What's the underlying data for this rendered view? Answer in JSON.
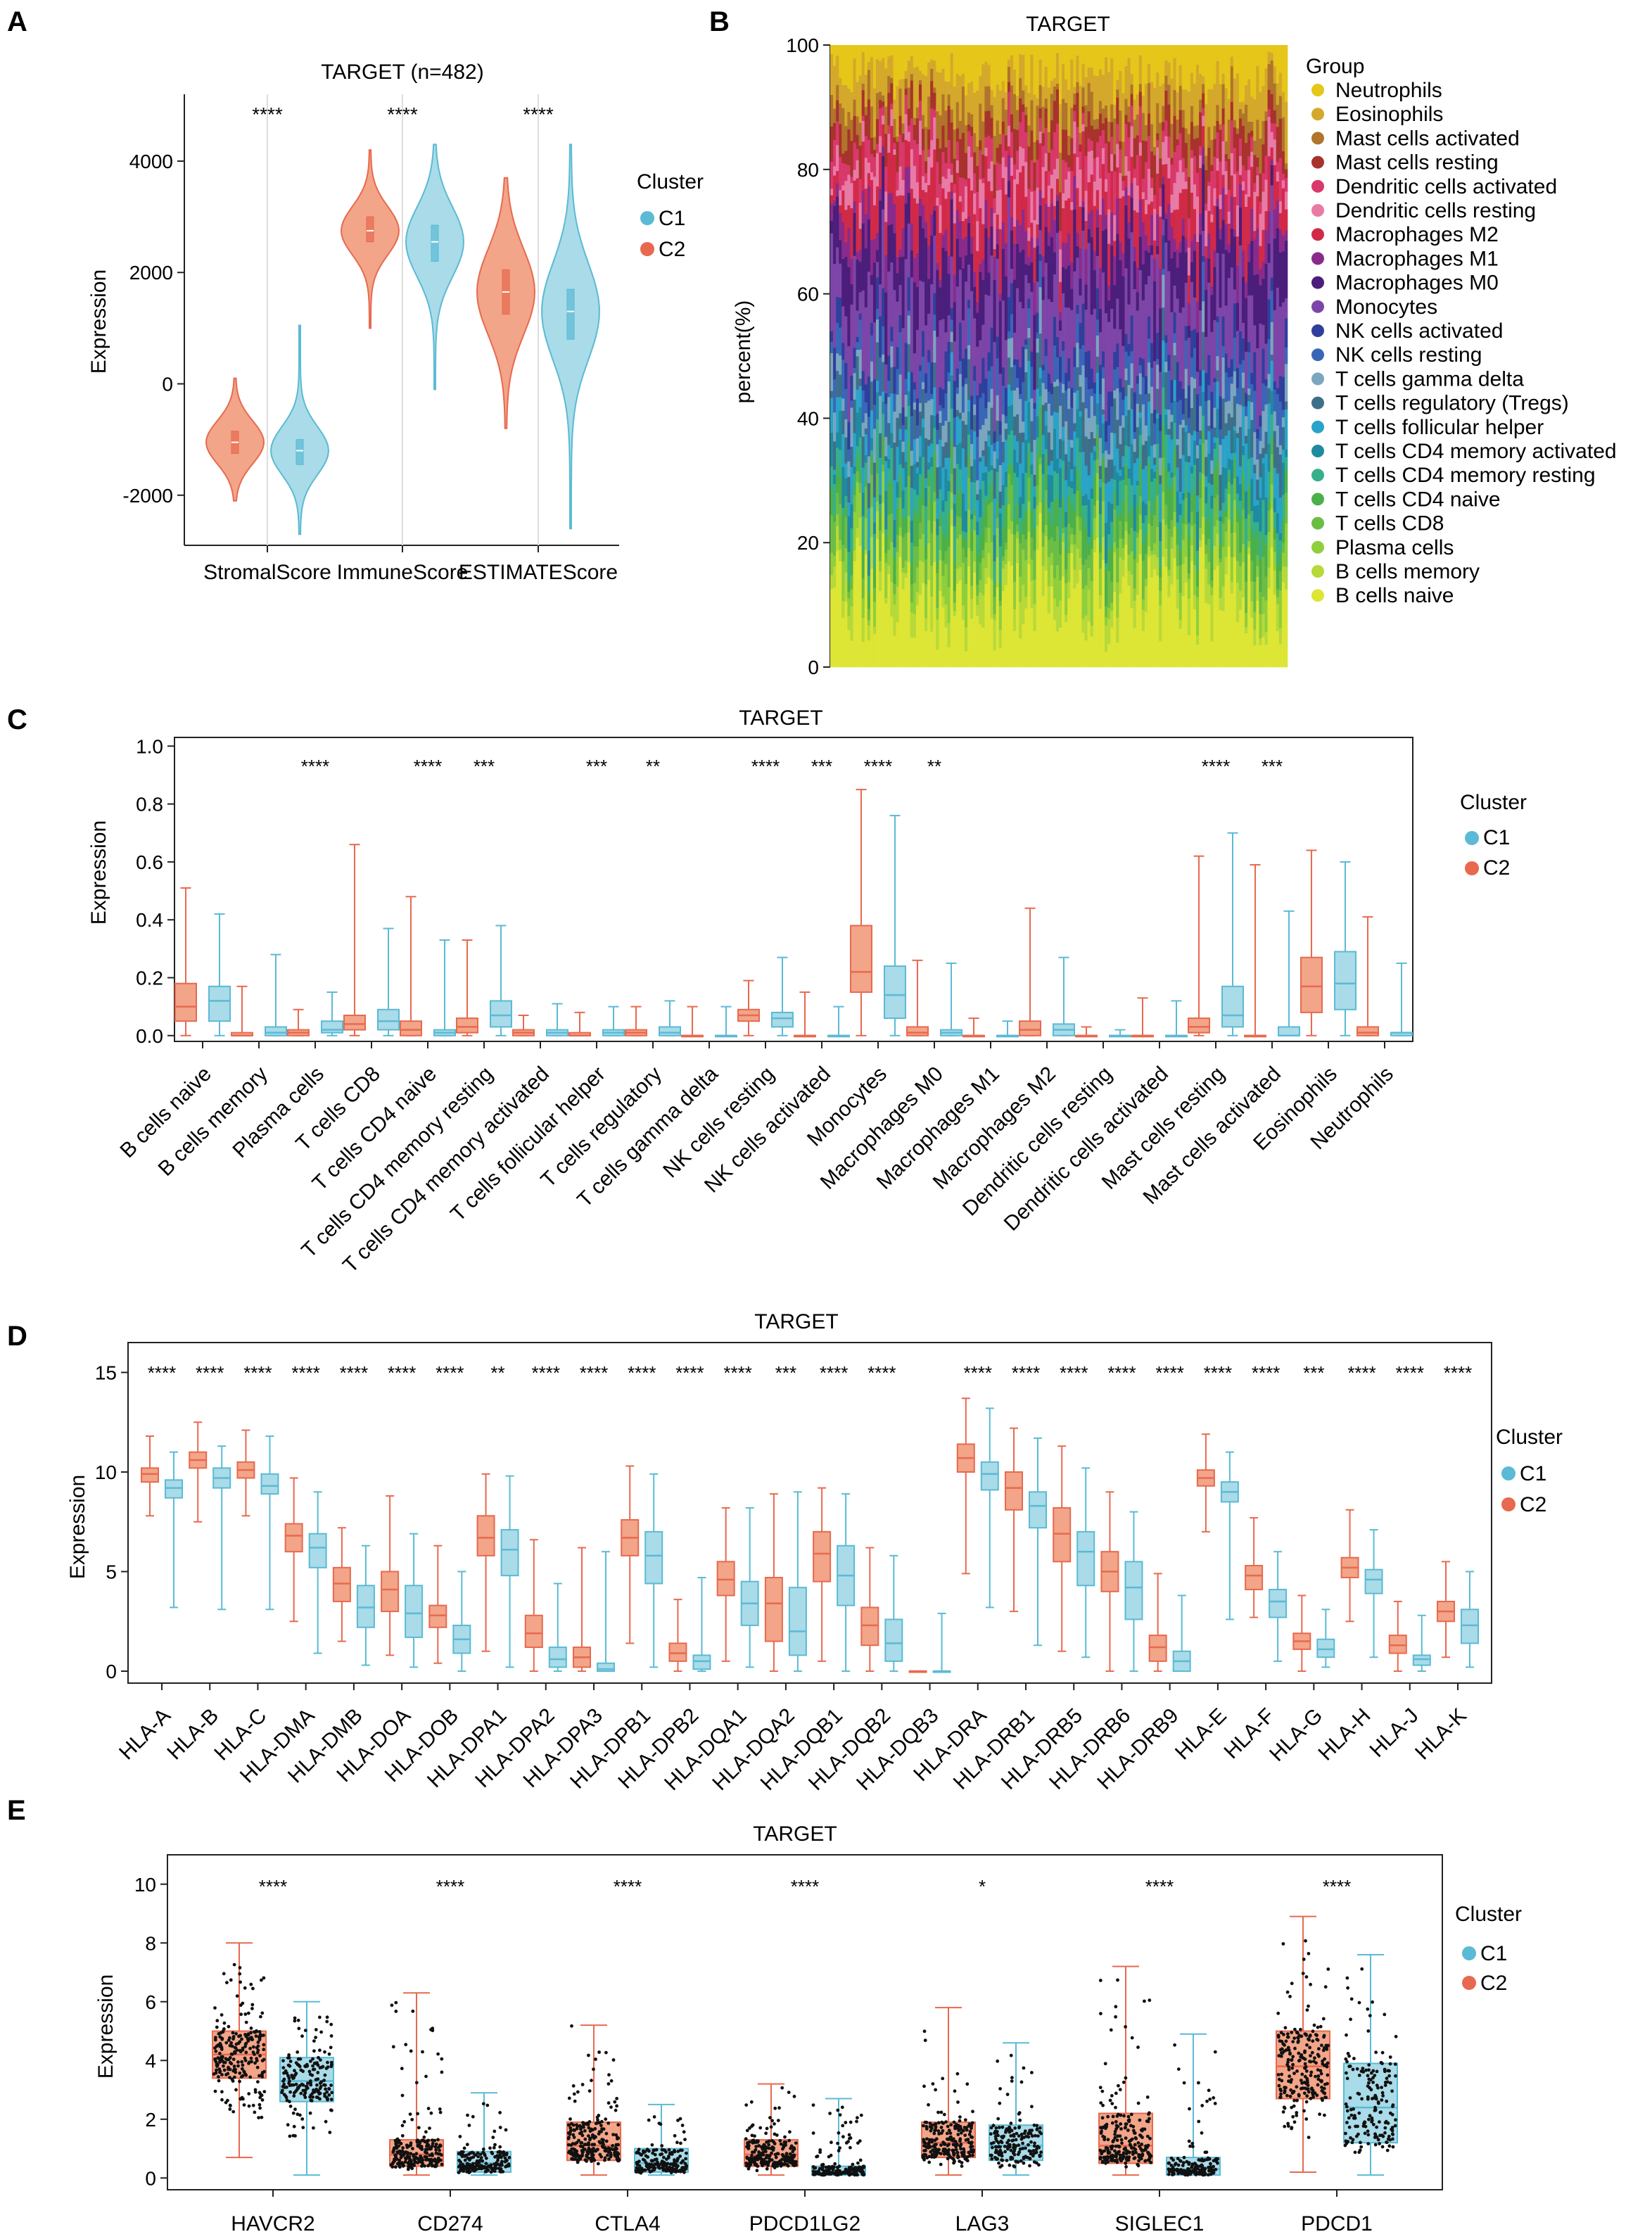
{
  "colors": {
    "c1": "#5bbad5",
    "c2": "#e8694f",
    "c1_fill": "#a9dbe8",
    "c2_fill": "#f2a588"
  },
  "chart_data": [
    {
      "panel": "A",
      "type": "violin",
      "title": "TARGET (n=482)",
      "ylabel": "Expression",
      "xlabel": "",
      "ylim": [
        -2900,
        5200
      ],
      "yticks": [
        -2000,
        0,
        2000,
        4000
      ],
      "categories": [
        "StromalScore",
        "ImmuneScore",
        "ESTIMATEScore"
      ],
      "significance": [
        "****",
        "****",
        "****"
      ],
      "legend_title": "Cluster",
      "legend": [
        "C1",
        "C2"
      ],
      "series": [
        {
          "name": "C2",
          "min": [
            -2100,
            1000,
            -800
          ],
          "q1": [
            -1250,
            2550,
            1250
          ],
          "median": [
            -1050,
            2750,
            1650
          ],
          "q3": [
            -850,
            3000,
            2050
          ],
          "max": [
            100,
            4200,
            3700
          ]
        },
        {
          "name": "C1",
          "min": [
            -2700,
            -100,
            -2600
          ],
          "q1": [
            -1450,
            2200,
            800
          ],
          "median": [
            -1200,
            2550,
            1300
          ],
          "q3": [
            -1000,
            2850,
            1700
          ],
          "max": [
            1050,
            4300,
            4300
          ]
        }
      ]
    },
    {
      "panel": "B",
      "type": "stacked-bar",
      "title": "TARGET",
      "ylabel": "percent(%)",
      "ylim": [
        0,
        100
      ],
      "yticks": [
        0,
        20,
        40,
        60,
        80,
        100
      ],
      "legend_title": "Group",
      "groups": [
        {
          "name": "Neutrophils",
          "color": "#e6c619"
        },
        {
          "name": "Eosinophils",
          "color": "#d4a82a"
        },
        {
          "name": "Mast cells activated",
          "color": "#b0742a"
        },
        {
          "name": "Mast cells resting",
          "color": "#a8322c"
        },
        {
          "name": "Dendritic cells activated",
          "color": "#d9386b"
        },
        {
          "name": "Dendritic cells resting",
          "color": "#e87aa6"
        },
        {
          "name": "Macrophages M2",
          "color": "#d12a48"
        },
        {
          "name": "Macrophages M1",
          "color": "#8a2b8c"
        },
        {
          "name": "Macrophages M0",
          "color": "#4a1e7a"
        },
        {
          "name": "Monocytes",
          "color": "#7d45a8"
        },
        {
          "name": "NK cells activated",
          "color": "#2f3f9c"
        },
        {
          "name": "NK cells resting",
          "color": "#3a66b8"
        },
        {
          "name": "T cells gamma delta",
          "color": "#7aa6bf"
        },
        {
          "name": "T cells regulatory (Tregs)",
          "color": "#3e6f8a"
        },
        {
          "name": "T cells follicular helper",
          "color": "#2aa3c9"
        },
        {
          "name": "T cells CD4 memory activated",
          "color": "#1f8aa0"
        },
        {
          "name": "T cells CD4 memory resting",
          "color": "#35b08a"
        },
        {
          "name": "T cells CD4 naive",
          "color": "#4cb04a"
        },
        {
          "name": "T cells CD8",
          "color": "#6cbd45"
        },
        {
          "name": "Plasma cells",
          "color": "#8fcf3c"
        },
        {
          "name": "B cells memory",
          "color": "#b7d93a"
        },
        {
          "name": "B cells naive",
          "color": "#dde535"
        }
      ]
    },
    {
      "panel": "C",
      "type": "box",
      "title": "TARGET",
      "ylabel": "Expression",
      "ylim": [
        -0.02,
        1.03
      ],
      "yticks": [
        0.0,
        0.2,
        0.4,
        0.6,
        0.8,
        1.0
      ],
      "legend_title": "Cluster",
      "legend": [
        "C1",
        "C2"
      ],
      "categories": [
        "B cells naive",
        "B cells memory",
        "Plasma cells",
        "T cells CD8",
        "T cells CD4 naive",
        "T cells CD4 memory resting",
        "T cells CD4 memory activated",
        "T cells follicular helper",
        "T cells regulatory",
        "T cells gamma delta",
        "NK cells resting",
        "NK cells activated",
        "Monocytes",
        "Macrophages M0",
        "Macrophages M1",
        "Macrophages M2",
        "Dendritic cells resting",
        "Dendritic cells activated",
        "Mast cells resting",
        "Mast cells activated",
        "Eosinophils",
        "Neutrophils"
      ],
      "significance": [
        "",
        "",
        "****",
        "",
        "****",
        "***",
        "",
        "***",
        "**",
        "",
        "****",
        "***",
        "****",
        "**",
        "",
        "",
        "",
        "",
        "****",
        "***",
        "",
        ""
      ],
      "series": [
        {
          "name": "C2",
          "min": [
            0,
            0,
            0,
            0,
            0,
            0,
            0,
            0,
            0,
            0,
            0,
            0,
            0,
            0,
            0,
            0,
            0,
            0,
            0,
            0,
            0,
            0
          ],
          "q1": [
            0.05,
            0,
            0,
            0.02,
            0,
            0.01,
            0,
            0,
            0,
            0,
            0.05,
            0,
            0.15,
            0,
            0,
            0,
            0,
            0,
            0.01,
            0,
            0.08,
            0
          ],
          "median": [
            0.1,
            0,
            0.01,
            0.04,
            0.02,
            0.03,
            0.01,
            0,
            0.01,
            0,
            0.07,
            0,
            0.22,
            0.01,
            0,
            0.02,
            0,
            0,
            0.03,
            0,
            0.17,
            0.01
          ],
          "q3": [
            0.18,
            0.01,
            0.02,
            0.07,
            0.05,
            0.06,
            0.02,
            0.01,
            0.02,
            0,
            0.09,
            0,
            0.38,
            0.03,
            0,
            0.05,
            0,
            0,
            0.06,
            0,
            0.27,
            0.03
          ],
          "max": [
            0.51,
            0.17,
            0.09,
            0.66,
            0.48,
            0.33,
            0.07,
            0.08,
            0.1,
            0.1,
            0.19,
            0.15,
            0.85,
            0.26,
            0.06,
            0.44,
            0.03,
            0.13,
            0.62,
            0.59,
            0.64,
            0.41
          ]
        },
        {
          "name": "C1",
          "min": [
            0,
            0,
            0,
            0,
            0,
            0,
            0,
            0,
            0,
            0,
            0,
            0,
            0,
            0,
            0,
            0,
            0,
            0,
            0,
            0,
            0,
            0
          ],
          "q1": [
            0.05,
            0,
            0.01,
            0.02,
            0,
            0.03,
            0,
            0,
            0,
            0,
            0.03,
            0,
            0.06,
            0,
            0,
            0,
            0,
            0,
            0.03,
            0,
            0.09,
            0
          ],
          "median": [
            0.12,
            0.01,
            0.02,
            0.05,
            0.01,
            0.07,
            0.01,
            0.01,
            0.01,
            0,
            0.06,
            0,
            0.14,
            0.01,
            0,
            0.02,
            0,
            0,
            0.07,
            0,
            0.18,
            0.01
          ],
          "q3": [
            0.17,
            0.03,
            0.05,
            0.09,
            0.02,
            0.12,
            0.02,
            0.02,
            0.03,
            0,
            0.08,
            0,
            0.24,
            0.02,
            0,
            0.04,
            0,
            0,
            0.17,
            0.03,
            0.29,
            0.01
          ],
          "max": [
            0.42,
            0.28,
            0.15,
            0.37,
            0.33,
            0.38,
            0.11,
            0.1,
            0.12,
            0.1,
            0.27,
            0.1,
            0.76,
            0.25,
            0.05,
            0.27,
            0.02,
            0.12,
            0.7,
            0.43,
            0.6,
            0.25
          ]
        }
      ]
    },
    {
      "panel": "D",
      "type": "box",
      "title": "TARGET",
      "ylabel": "Expression",
      "ylim": [
        -0.6,
        16.5
      ],
      "yticks": [
        0,
        5,
        10,
        15
      ],
      "legend_title": "Cluster",
      "legend": [
        "C1",
        "C2"
      ],
      "categories": [
        "HLA-A",
        "HLA-B",
        "HLA-C",
        "HLA-DMA",
        "HLA-DMB",
        "HLA-DOA",
        "HLA-DOB",
        "HLA-DPA1",
        "HLA-DPA2",
        "HLA-DPA3",
        "HLA-DPB1",
        "HLA-DPB2",
        "HLA-DQA1",
        "HLA-DQA2",
        "HLA-DQB1",
        "HLA-DQB2",
        "HLA-DQB3",
        "HLA-DRA",
        "HLA-DRB1",
        "HLA-DRB5",
        "HLA-DRB6",
        "HLA-DRB9",
        "HLA-E",
        "HLA-F",
        "HLA-G",
        "HLA-H",
        "HLA-J",
        "HLA-K"
      ],
      "significance": [
        "****",
        "****",
        "****",
        "****",
        "****",
        "****",
        "****",
        "**",
        "****",
        "****",
        "****",
        "****",
        "****",
        "***",
        "****",
        "****",
        "",
        "****",
        "****",
        "****",
        "****",
        "****",
        "****",
        "****",
        "***",
        "****",
        "****",
        "****"
      ],
      "series": [
        {
          "name": "C2",
          "min": [
            7.8,
            7.5,
            7.8,
            2.5,
            1.5,
            0.8,
            0.4,
            1.0,
            0,
            0,
            1.4,
            0,
            0.5,
            0,
            0.5,
            0,
            0,
            4.9,
            3.0,
            1.0,
            0,
            0,
            7.0,
            2.7,
            0,
            2.5,
            0,
            0.7
          ],
          "q1": [
            9.5,
            10.2,
            9.7,
            6.0,
            3.5,
            3.0,
            2.2,
            5.8,
            1.2,
            0.2,
            5.8,
            0.5,
            3.8,
            1.5,
            4.5,
            1.3,
            0,
            10.0,
            8.1,
            5.5,
            4.0,
            0.5,
            9.3,
            4.1,
            1.1,
            4.7,
            0.9,
            2.5
          ],
          "median": [
            9.9,
            10.6,
            10.1,
            6.8,
            4.4,
            4.1,
            2.8,
            6.7,
            1.9,
            0.7,
            6.7,
            0.9,
            4.6,
            3.4,
            5.9,
            2.3,
            0,
            10.7,
            9.2,
            6.9,
            5.0,
            1.2,
            9.7,
            4.8,
            1.5,
            5.2,
            1.3,
            3.0
          ],
          "q3": [
            10.2,
            11.0,
            10.5,
            7.4,
            5.2,
            5.0,
            3.3,
            7.8,
            2.8,
            1.2,
            7.6,
            1.4,
            5.5,
            4.7,
            7.0,
            3.2,
            0,
            11.4,
            10.0,
            8.2,
            6.0,
            1.8,
            10.1,
            5.3,
            1.9,
            5.7,
            1.8,
            3.5
          ],
          "max": [
            11.8,
            12.5,
            12.1,
            9.7,
            7.2,
            8.8,
            6.3,
            9.9,
            6.6,
            6.2,
            10.3,
            3.6,
            8.2,
            8.9,
            9.2,
            6.2,
            0,
            13.7,
            12.2,
            11.3,
            9.0,
            4.9,
            11.9,
            7.7,
            3.8,
            8.1,
            3.5,
            5.5
          ]
        },
        {
          "name": "C1",
          "min": [
            3.2,
            3.1,
            3.1,
            0.9,
            0.3,
            0.2,
            0,
            0.2,
            0,
            0,
            0.2,
            0,
            0.2,
            0,
            0,
            0,
            0,
            3.2,
            1.3,
            0.7,
            0,
            0,
            2.6,
            0.5,
            0.2,
            0.7,
            0,
            0.2
          ],
          "q1": [
            8.7,
            9.2,
            8.9,
            5.2,
            2.2,
            1.7,
            0.9,
            4.8,
            0.2,
            0,
            4.4,
            0.1,
            2.3,
            0.8,
            3.3,
            0.5,
            0,
            9.1,
            7.2,
            4.3,
            2.6,
            0,
            8.5,
            2.7,
            0.7,
            3.9,
            0.3,
            1.4
          ],
          "median": [
            9.2,
            9.7,
            9.3,
            6.2,
            3.2,
            2.9,
            1.6,
            6.1,
            0.6,
            0.1,
            5.8,
            0.5,
            3.4,
            2.0,
            4.8,
            1.4,
            0,
            9.9,
            8.3,
            6.0,
            4.2,
            0.5,
            9.0,
            3.5,
            1.1,
            4.6,
            0.6,
            2.3
          ],
          "q3": [
            9.6,
            10.2,
            9.9,
            6.9,
            4.3,
            4.3,
            2.3,
            7.1,
            1.2,
            0.4,
            7.0,
            0.8,
            4.5,
            4.2,
            6.3,
            2.6,
            0,
            10.5,
            9.0,
            7.0,
            5.5,
            1.0,
            9.5,
            4.1,
            1.6,
            5.1,
            0.8,
            3.1
          ],
          "max": [
            11.0,
            11.3,
            11.8,
            9.0,
            6.3,
            6.9,
            5.0,
            9.8,
            4.4,
            6.0,
            9.9,
            4.7,
            8.2,
            9.0,
            8.9,
            5.8,
            2.9,
            13.2,
            11.7,
            10.2,
            8.0,
            3.8,
            11.0,
            6.0,
            3.1,
            7.1,
            2.8,
            5.0
          ]
        }
      ]
    },
    {
      "panel": "E",
      "type": "box-jitter",
      "title": "TARGET",
      "ylabel": "Expression",
      "ylim": [
        -0.4,
        11.0
      ],
      "yticks": [
        0,
        2,
        4,
        6,
        8,
        10
      ],
      "legend_title": "Cluster",
      "legend": [
        "C1",
        "C2"
      ],
      "categories": [
        "HAVCR2",
        "CD274",
        "CTLA4",
        "PDCD1LG2",
        "LAG3",
        "SIGLEC1",
        "PDCD1"
      ],
      "significance": [
        "****",
        "****",
        "****",
        "****",
        "*",
        "****",
        "****"
      ],
      "series": [
        {
          "name": "C2",
          "min": [
            0.7,
            0.1,
            0.1,
            0.1,
            0.1,
            0.1,
            0.2
          ],
          "q1": [
            3.4,
            0.4,
            0.6,
            0.4,
            0.7,
            0.5,
            2.7
          ],
          "median": [
            4.2,
            0.8,
            1.1,
            0.8,
            1.2,
            1.1,
            3.8
          ],
          "q3": [
            5.0,
            1.3,
            1.9,
            1.3,
            1.9,
            2.2,
            5.0
          ],
          "max": [
            8.0,
            6.3,
            5.2,
            3.2,
            5.8,
            7.2,
            8.9
          ]
        },
        {
          "name": "C1",
          "min": [
            0.1,
            0.1,
            0.1,
            0.1,
            0.1,
            0.1,
            0.1
          ],
          "q1": [
            2.6,
            0.2,
            0.2,
            0.1,
            0.6,
            0.1,
            1.2
          ],
          "median": [
            3.3,
            0.5,
            0.5,
            0.2,
            1.1,
            0.3,
            2.4
          ],
          "q3": [
            4.1,
            0.9,
            1.0,
            0.4,
            1.8,
            0.7,
            3.9
          ],
          "max": [
            6.0,
            2.9,
            2.5,
            2.7,
            4.6,
            4.9,
            7.6
          ]
        }
      ]
    }
  ]
}
